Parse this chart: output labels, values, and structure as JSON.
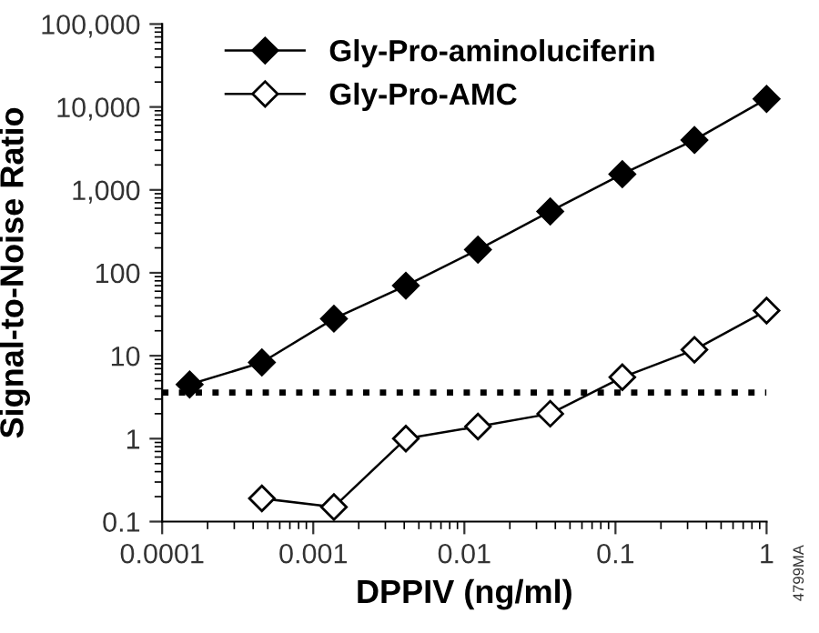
{
  "chart_data": {
    "type": "line",
    "xlabel": "DPPIV (ng/ml)",
    "ylabel": "Signal-to-Noise Ratio",
    "log": "xy",
    "marker": "diamond",
    "line_style": "solid",
    "legend": "top left",
    "grid": false,
    "x": [
      0.000152,
      0.000457,
      0.00137,
      0.0041,
      0.0123,
      0.037,
      0.111,
      0.333,
      1
    ],
    "series": [
      {
        "name": "Gly-Pro-aminoluciferin",
        "color": "#000000",
        "values": [
          4.5,
          8.3,
          28,
          70,
          190,
          550,
          1550,
          4000,
          12500
        ]
      },
      {
        "name": "Gly-Pro-AMC",
        "color": "#000000",
        "colors": [
          null,
          "#ffffff",
          "#ffffff",
          "#ffffff",
          "#ffffff",
          "#ffffff",
          "#ffffff",
          "#ffffff",
          "#ffffff"
        ],
        "values": [
          null,
          0.19,
          0.15,
          1.0,
          1.4,
          2.0,
          5.5,
          11.8,
          35
        ]
      }
    ],
    "xlim": [
      0.0001,
      1
    ],
    "xticks": [
      0.0001,
      0.001,
      0.01,
      0.1,
      1
    ],
    "ylim": [
      0.1,
      100000
    ],
    "yticks": [
      0.1,
      1,
      10,
      100,
      {
        "value": 1000,
        "label": "1,000"
      },
      {
        "value": 10000,
        "label": "10,000"
      },
      {
        "value": 100000,
        "label": "100,000"
      }
    ],
    "ref_lines": [
      {
        "axis": "y",
        "value": 3.6,
        "label": null,
        "color": "#000000",
        "line_style": "dotted"
      }
    ],
    "annotations": [
      "4799MA"
    ]
  }
}
